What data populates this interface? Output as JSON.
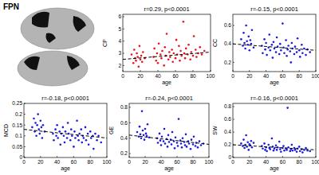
{
  "panel_label": "FPN",
  "chart_data": [
    {
      "type": "scatter",
      "title": "r=0.29, p<0.0001",
      "x_label": "age",
      "y_label": "CP",
      "xlim": [
        0,
        100
      ],
      "xticks": [
        0,
        20,
        40,
        60,
        80,
        100
      ],
      "ylim": [
        1.5,
        6.2
      ],
      "yticks": [
        2,
        3,
        4,
        5,
        6
      ],
      "series": [
        {
          "type": "scatter",
          "color": "#e8121a",
          "marker": "circle",
          "x": [
            10,
            12,
            13,
            14,
            15,
            16,
            17,
            18,
            19,
            20,
            21,
            22,
            23,
            25,
            35,
            36,
            38,
            39,
            40,
            41,
            43,
            44,
            45,
            47,
            48,
            49,
            50,
            52,
            53,
            54,
            56,
            57,
            58,
            60,
            61,
            62,
            64,
            65,
            66,
            67,
            69,
            70,
            71,
            72,
            74,
            75,
            77,
            78,
            80,
            81,
            83,
            84,
            86,
            88,
            90,
            93
          ],
          "values": [
            2.9,
            2.2,
            3.3,
            2.6,
            2.4,
            3.0,
            2.7,
            1.9,
            3.6,
            2.5,
            2.8,
            2.3,
            3.1,
            2.6,
            2.7,
            3.4,
            2.4,
            3.0,
            2.2,
            3.8,
            2.9,
            2.6,
            3.2,
            2.0,
            3.5,
            2.8,
            4.6,
            2.5,
            3.1,
            2.7,
            3.3,
            2.3,
            3.0,
            2.6,
            4.1,
            2.9,
            3.6,
            2.4,
            3.2,
            2.8,
            5.6,
            3.0,
            2.6,
            3.4,
            2.9,
            3.7,
            2.5,
            3.1,
            2.8,
            4.4,
            3.3,
            2.7,
            3.0,
            3.5,
            2.9,
            3.2
          ]
        },
        {
          "type": "line",
          "color": "#000000",
          "line_style": "dashed",
          "x": [
            0,
            100
          ],
          "values": [
            2.5,
            3.1
          ]
        }
      ]
    },
    {
      "type": "scatter",
      "title": "r=-0.15, p<0.0001",
      "x_label": "age",
      "y_label": "CC",
      "xlim": [
        0,
        100
      ],
      "xticks": [
        0,
        20,
        40,
        60,
        80,
        100
      ],
      "ylim": [
        0.1,
        0.72
      ],
      "yticks": [
        0.2,
        0.4,
        0.6
      ],
      "series": [
        {
          "type": "scatter",
          "color": "#1a1adc",
          "marker": "circle",
          "x": [
            10,
            12,
            13,
            14,
            15,
            16,
            17,
            18,
            19,
            20,
            21,
            22,
            23,
            25,
            35,
            36,
            38,
            39,
            40,
            41,
            43,
            44,
            45,
            47,
            48,
            49,
            50,
            52,
            53,
            54,
            56,
            57,
            58,
            60,
            61,
            62,
            64,
            65,
            66,
            67,
            69,
            70,
            71,
            72,
            74,
            75,
            77,
            78,
            80,
            81,
            83,
            84,
            86,
            88,
            90,
            93
          ],
          "values": [
            0.45,
            0.38,
            0.52,
            0.41,
            0.35,
            0.6,
            0.43,
            0.39,
            0.48,
            0.33,
            0.44,
            0.4,
            0.55,
            0.36,
            0.38,
            0.3,
            0.45,
            0.34,
            0.41,
            0.28,
            0.36,
            0.5,
            0.33,
            0.39,
            0.25,
            0.42,
            0.35,
            0.31,
            0.47,
            0.37,
            0.29,
            0.4,
            0.33,
            0.62,
            0.36,
            0.3,
            0.44,
            0.27,
            0.34,
            0.38,
            0.32,
            0.2,
            0.41,
            0.35,
            0.29,
            0.37,
            0.31,
            0.46,
            0.33,
            0.26,
            0.39,
            0.3,
            0.35,
            0.28,
            0.34,
            0.31
          ]
        },
        {
          "type": "line",
          "color": "#000000",
          "line_style": "dashed",
          "x": [
            0,
            100
          ],
          "values": [
            0.4,
            0.33
          ]
        }
      ]
    },
    {
      "type": "scatter",
      "title": "r=-0.18, p<0.0001",
      "x_label": "age",
      "y_label": "MCD",
      "xlim": [
        0,
        100
      ],
      "xticks": [
        0,
        20,
        40,
        60,
        80,
        100
      ],
      "ylim": [
        0,
        0.25
      ],
      "yticks": [
        0,
        0.05,
        0.1,
        0.15,
        0.2,
        0.25
      ],
      "series": [
        {
          "type": "scatter",
          "color": "#1a1adc",
          "marker": "circle",
          "x": [
            10,
            12,
            13,
            14,
            15,
            16,
            17,
            18,
            19,
            20,
            21,
            22,
            23,
            25,
            35,
            36,
            38,
            39,
            40,
            41,
            43,
            44,
            45,
            47,
            48,
            49,
            50,
            52,
            53,
            54,
            56,
            57,
            58,
            60,
            61,
            62,
            64,
            65,
            66,
            67,
            69,
            70,
            71,
            72,
            74,
            75,
            77,
            78,
            80,
            81,
            83,
            84,
            86,
            88,
            90,
            93
          ],
          "values": [
            0.14,
            0.18,
            0.12,
            0.16,
            0.1,
            0.15,
            0.2,
            0.13,
            0.11,
            0.17,
            0.14,
            0.09,
            0.15,
            0.12,
            0.11,
            0.08,
            0.13,
            0.1,
            0.15,
            0.09,
            0.12,
            0.06,
            0.11,
            0.14,
            0.1,
            0.07,
            0.12,
            0.09,
            0.16,
            0.11,
            0.08,
            0.13,
            0.1,
            0.05,
            0.12,
            0.09,
            0.17,
            0.1,
            0.08,
            0.11,
            0.13,
            0.07,
            0.1,
            0.09,
            0.14,
            0.08,
            0.11,
            0.06,
            0.12,
            0.09,
            0.1,
            0.04,
            0.11,
            0.08,
            0.1,
            0.07
          ]
        },
        {
          "type": "line",
          "color": "#000000",
          "line_style": "dashed",
          "x": [
            0,
            100
          ],
          "values": [
            0.13,
            0.09
          ]
        }
      ]
    },
    {
      "type": "scatter",
      "title": "r=-0.24, p<0.0001",
      "x_label": "age",
      "y_label": "GE",
      "xlim": [
        0,
        100
      ],
      "xticks": [
        0,
        20,
        40,
        60,
        80,
        100
      ],
      "ylim": [
        0.15,
        0.85
      ],
      "yticks": [
        0.2,
        0.4,
        0.6,
        0.8
      ],
      "series": [
        {
          "type": "scatter",
          "color": "#1a1adc",
          "marker": "circle",
          "x": [
            10,
            12,
            13,
            14,
            15,
            16,
            17,
            18,
            19,
            20,
            21,
            22,
            23,
            25,
            35,
            36,
            38,
            39,
            40,
            41,
            43,
            44,
            45,
            47,
            48,
            49,
            50,
            52,
            53,
            54,
            56,
            57,
            58,
            60,
            61,
            62,
            64,
            65,
            66,
            67,
            69,
            70,
            71,
            72,
            74,
            75,
            77,
            78,
            80,
            81,
            83,
            84,
            86,
            88,
            90,
            93
          ],
          "values": [
            0.48,
            0.42,
            0.55,
            0.45,
            0.4,
            0.75,
            0.5,
            0.44,
            0.38,
            0.52,
            0.46,
            0.43,
            0.58,
            0.41,
            0.4,
            0.34,
            0.46,
            0.37,
            0.31,
            0.42,
            0.36,
            0.52,
            0.33,
            0.39,
            0.29,
            0.44,
            0.35,
            0.38,
            0.32,
            0.48,
            0.36,
            0.27,
            0.41,
            0.34,
            0.3,
            0.65,
            0.37,
            0.33,
            0.28,
            0.4,
            0.35,
            0.31,
            0.45,
            0.29,
            0.36,
            0.33,
            0.26,
            0.38,
            0.32,
            0.42,
            0.3,
            0.34,
            0.28,
            0.36,
            0.31,
            0.33
          ]
        },
        {
          "type": "line",
          "color": "#000000",
          "line_style": "dashed",
          "x": [
            0,
            100
          ],
          "values": [
            0.44,
            0.32
          ]
        }
      ]
    },
    {
      "type": "scatter",
      "title": "r=-0.16, p<0.0001",
      "x_label": "age",
      "y_label": "SW",
      "xlim": [
        0,
        100
      ],
      "xticks": [
        0,
        20,
        40,
        60,
        80,
        100
      ],
      "ylim": [
        0,
        0.85
      ],
      "yticks": [
        0,
        0.2,
        0.4,
        0.6,
        0.8
      ],
      "series": [
        {
          "type": "scatter",
          "color": "#1a1adc",
          "marker": "circle",
          "x": [
            10,
            12,
            13,
            14,
            15,
            16,
            17,
            18,
            19,
            20,
            21,
            22,
            23,
            25,
            35,
            36,
            38,
            39,
            40,
            41,
            43,
            44,
            45,
            47,
            48,
            49,
            50,
            52,
            53,
            54,
            56,
            57,
            58,
            60,
            61,
            62,
            64,
            65,
            66,
            67,
            69,
            70,
            71,
            72,
            74,
            75,
            77,
            78,
            80,
            81,
            83,
            84,
            86,
            88,
            90,
            93
          ],
          "values": [
            0.22,
            0.18,
            0.28,
            0.15,
            0.2,
            0.35,
            0.17,
            0.24,
            0.12,
            0.21,
            0.19,
            0.26,
            0.16,
            0.23,
            0.18,
            0.14,
            0.22,
            0.12,
            0.16,
            0.1,
            0.2,
            0.15,
            0.13,
            0.3,
            0.17,
            0.11,
            0.14,
            0.19,
            0.12,
            0.16,
            0.25,
            0.13,
            0.09,
            0.15,
            0.18,
            0.11,
            0.14,
            0.12,
            0.78,
            0.16,
            0.1,
            0.13,
            0.2,
            0.11,
            0.15,
            0.12,
            0.09,
            0.14,
            0.17,
            0.1,
            0.13,
            0.08,
            0.12,
            0.15,
            0.11,
            0.1
          ]
        },
        {
          "type": "line",
          "color": "#000000",
          "line_style": "dashed",
          "x": [
            0,
            100
          ],
          "values": [
            0.2,
            0.12
          ]
        }
      ]
    }
  ]
}
